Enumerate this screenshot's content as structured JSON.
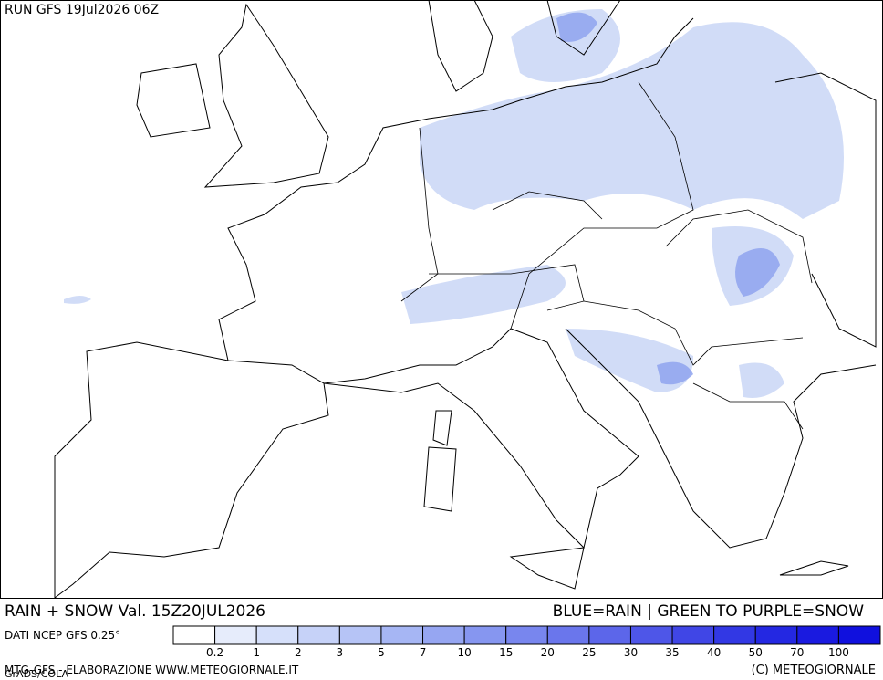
{
  "header": {
    "run": "RUN GFS 19Jul2026 06Z"
  },
  "footer": {
    "title": "RAIN + SNOW Val. 15Z20JUL2026",
    "key": "BLUE=RAIN | GREEN TO PURPLE=SNOW",
    "source": "DATI NCEP GFS 0.25°",
    "credit": "MTG-GFS - ELABORAZIONE WWW.METEOGIORNALE.IT",
    "copyright": "(C) METEOGIORNALE",
    "software": "GrADS/COLA"
  },
  "legend": {
    "labels": [
      "0.2",
      "1",
      "2",
      "3",
      "5",
      "7",
      "10",
      "15",
      "20",
      "25",
      "30",
      "35",
      "40",
      "50",
      "70",
      "100"
    ],
    "colors": [
      "#ffffff",
      "#e6ecfb",
      "#d6e0fa",
      "#c6d2f8",
      "#b6c4f6",
      "#a6b6f4",
      "#96a6f2",
      "#8696f0",
      "#7886ee",
      "#6a76ec",
      "#5c66ea",
      "#4e56e8",
      "#4046e6",
      "#3238e4",
      "#2428e2",
      "#1a1ae0",
      "#1010de"
    ]
  }
}
